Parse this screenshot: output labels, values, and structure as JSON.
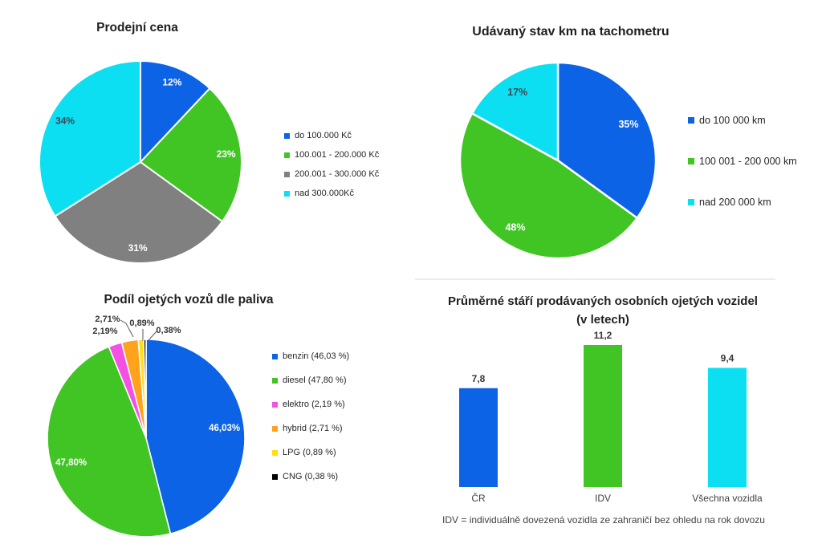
{
  "page": {
    "background": "#ffffff"
  },
  "chart_data": [
    {
      "id": "price",
      "type": "pie",
      "title": "Prodejní cena",
      "legend_position": "right",
      "start_angle_deg": 0,
      "direction": "clockwise",
      "slices": [
        {
          "legend": "do 100.000 Kč",
          "value": 12,
          "label": "12%",
          "color": "#0d63e6",
          "label_color": "#ffffff"
        },
        {
          "legend": "100.001 - 200.000 Kč",
          "value": 23,
          "label": "23%",
          "color": "#41c524",
          "label_color": "#ffffff"
        },
        {
          "legend": "200.001 - 300.000 Kč",
          "value": 31,
          "label": "31%",
          "color": "#808080",
          "label_color": "#ffffff"
        },
        {
          "legend": "nad 300.000Kč",
          "value": 34,
          "label": "34%",
          "color": "#0ddff2",
          "label_color": "#3d4753"
        }
      ]
    },
    {
      "id": "odometer",
      "type": "pie",
      "title": "Udávaný stav km na tachometru",
      "legend_position": "right",
      "start_angle_deg": 0,
      "direction": "clockwise",
      "slices": [
        {
          "legend": "do 100 000 km",
          "value": 35,
          "label": "35%",
          "color": "#0d63e6",
          "label_color": "#ffffff"
        },
        {
          "legend": "100 001 - 200 000 km",
          "value": 48,
          "label": "48%",
          "color": "#41c524",
          "label_color": "#ffffff"
        },
        {
          "legend": "nad 200 000 km",
          "value": 17,
          "label": "17%",
          "color": "#0ddff2",
          "label_color": "#3d4753"
        }
      ]
    },
    {
      "id": "fuel",
      "type": "pie",
      "title": "Podíl ojetých vozů dle paliva",
      "legend_position": "right",
      "start_angle_deg": 0,
      "direction": "clockwise",
      "slices": [
        {
          "legend": "benzin (46,03 %)",
          "value": 46.03,
          "label": "46,03%",
          "color": "#0d63e6",
          "label_color": "#ffffff"
        },
        {
          "legend": "diesel (47,80 %)",
          "value": 47.8,
          "label": "47,80%",
          "color": "#41c524",
          "label_color": "#ffffff"
        },
        {
          "legend": "elektro (2,19 %)",
          "value": 2.19,
          "label": "2,19%",
          "color": "#f451e4",
          "label_color": "#333333",
          "label_outside": true
        },
        {
          "legend": "hybrid (2,71 %)",
          "value": 2.71,
          "label": "2,71%",
          "color": "#ffa31c",
          "label_color": "#333333",
          "label_outside": true
        },
        {
          "legend": "LPG (0,89 %)",
          "value": 0.89,
          "label": "0,89%",
          "color": "#ffdf17",
          "label_color": "#333333",
          "label_outside": true
        },
        {
          "legend": "CNG (0,38 %)",
          "value": 0.38,
          "label": "0,38%",
          "color": "#000000",
          "label_color": "#333333",
          "label_outside": true
        }
      ]
    },
    {
      "id": "age",
      "type": "bar",
      "title": "Průměrné stáří prodávaných osobních ojetých vozidel",
      "subtitle": "(v letech)",
      "categories": [
        "ČR",
        "IDV",
        "Všechna vozidla"
      ],
      "values": [
        7.8,
        11.2,
        9.4
      ],
      "value_labels": [
        "7,8",
        "11,2",
        "9,4"
      ],
      "bar_colors": [
        "#0d63e6",
        "#41c524",
        "#0ddff2"
      ],
      "ylim": [
        0,
        12
      ],
      "axis": "none",
      "grid": false,
      "footnote": "IDV = individuálně dovezená vozidla ze zahraničí bez ohledu na rok dovozu"
    }
  ]
}
